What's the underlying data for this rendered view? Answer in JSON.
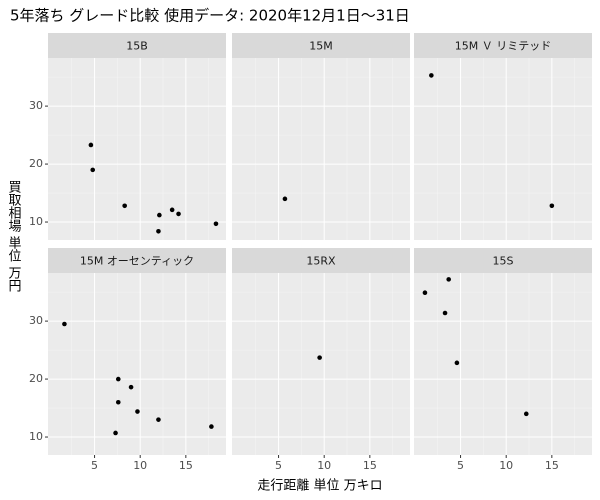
{
  "chart_data": {
    "type": "scatter",
    "title": "5年落ち グレード比較 使用データ: 2020年12月1日～31日",
    "xlabel": "走行距離 単位 万キロ",
    "ylabel": "買取相場 単位 万円",
    "xlim": [
      -0.1,
      19.4
    ],
    "xticks": [
      5,
      10,
      15
    ],
    "ylim": [
      6.9,
      38.3
    ],
    "yticks": [
      10,
      20,
      30
    ],
    "grid": true,
    "color": "#000000",
    "panels": [
      {
        "name": "15B",
        "x": [
          4.6,
          4.8,
          8.3,
          12.1,
          12.0,
          13.5,
          14.2,
          18.3
        ],
        "values": [
          23.3,
          19.0,
          12.8,
          11.2,
          8.4,
          12.1,
          11.4,
          9.7
        ]
      },
      {
        "name": "15M",
        "x": [
          5.7
        ],
        "values": [
          14.0
        ]
      },
      {
        "name": "15M Ｖ リミテッド",
        "x": [
          1.8,
          15.0
        ],
        "values": [
          35.3,
          12.8
        ]
      },
      {
        "name": "15M オーセンティック",
        "x": [
          1.7,
          7.6,
          7.6,
          9.0,
          9.7,
          12.0,
          7.3,
          17.8
        ],
        "values": [
          29.5,
          20.0,
          16.0,
          18.6,
          14.4,
          13.0,
          10.7,
          11.8
        ]
      },
      {
        "name": "15RX",
        "x": [
          9.5
        ],
        "values": [
          23.7
        ]
      },
      {
        "name": "15S",
        "x": [
          1.1,
          3.7,
          3.3,
          4.6,
          12.2
        ],
        "values": [
          34.9,
          37.2,
          31.4,
          22.8,
          14.0
        ]
      }
    ]
  }
}
